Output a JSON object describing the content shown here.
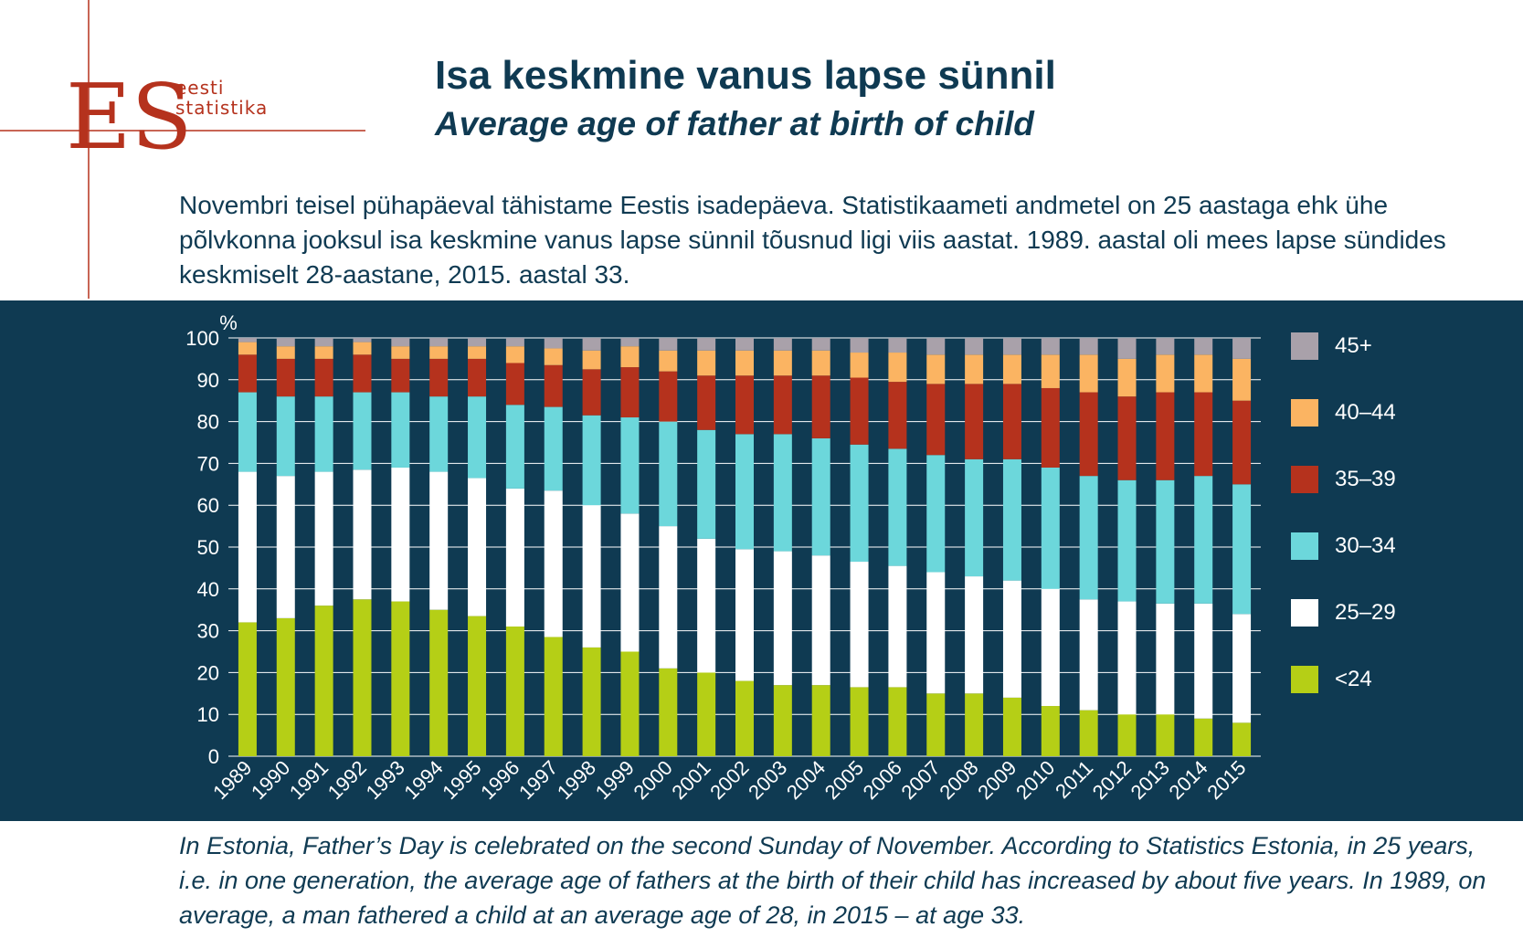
{
  "logo": {
    "mark": "ES",
    "line1": "eesti",
    "line2": "statistika",
    "color": "#b5321d"
  },
  "title": "Isa keskmine vanus lapse sünnil",
  "subtitle": "Average age of father at birth of child",
  "intro": "Novembri teisel pühapäeval tähistame Eestis isadepäeva. Statistikaameti andmetel on 25 aastaga ehk ühe põlvkonna jooksul isa keskmine vanus lapse sünnil tõusnud ligi viis aastat. 1989. aastal oli mees lapse sündides keskmiselt 28-aastane, 2015. aastal 33.",
  "outro": "In Estonia, Father’s Day is celebrated on the second Sunday of November. According to Statistics Estonia, in 25 years, i.e. in one generation, the average age of fathers at the birth of their child has increased by about five years. In 1989, on average, a man fathered a child at an average age of 28, in 2015 – at age 33.",
  "colors": {
    "panel": "#0f3a52"
  },
  "chart_data": {
    "type": "bar",
    "stacked": true,
    "ylabel": "%",
    "ylim": [
      0,
      100
    ],
    "yticks": [
      0,
      10,
      20,
      30,
      40,
      50,
      60,
      70,
      80,
      90,
      100
    ],
    "grid": true,
    "legend_position": "right",
    "categories": [
      "1989",
      "1990",
      "1991",
      "1992",
      "1993",
      "1994",
      "1995",
      "1996",
      "1997",
      "1998",
      "1999",
      "2000",
      "2001",
      "2002",
      "2003",
      "2004",
      "2005",
      "2006",
      "2007",
      "2008",
      "2009",
      "2010",
      "2011",
      "2012",
      "2013",
      "2014",
      "2015"
    ],
    "series": [
      {
        "name": "<24",
        "color": "#b5cf16",
        "values": [
          32,
          33,
          36,
          37.5,
          37,
          35,
          33.5,
          31,
          28.5,
          26,
          25,
          21,
          20,
          18,
          17,
          17,
          16.5,
          16.5,
          15,
          15,
          14,
          12,
          11,
          10,
          10,
          9,
          8
        ]
      },
      {
        "name": "25–29",
        "color": "#ffffff",
        "values": [
          36,
          34,
          32,
          31,
          32,
          33,
          33,
          33,
          35,
          34,
          33,
          34,
          32,
          31.5,
          32,
          31,
          30,
          29,
          29,
          28,
          28,
          28,
          26.5,
          27,
          26.5,
          27.5,
          26
        ]
      },
      {
        "name": "30–34",
        "color": "#6cd7db",
        "values": [
          19,
          19,
          18,
          18.5,
          18,
          18,
          19.5,
          20,
          20,
          21.5,
          23,
          25,
          26,
          27.5,
          28,
          28,
          28,
          28,
          28,
          28,
          29,
          29,
          29.5,
          29,
          29.5,
          30.5,
          31
        ]
      },
      {
        "name": "35–39",
        "color": "#b5321d",
        "values": [
          9,
          9,
          9,
          9,
          8,
          9,
          9,
          10,
          10,
          11,
          12,
          12,
          13,
          14,
          14,
          15,
          16,
          16,
          17,
          18,
          18,
          19,
          20,
          20,
          21,
          20,
          20
        ]
      },
      {
        "name": "40–44",
        "color": "#fbb462",
        "values": [
          3,
          3,
          3,
          3,
          3,
          3,
          3,
          4,
          4,
          4.5,
          5,
          5,
          6,
          6,
          6,
          6,
          6,
          7,
          7,
          7,
          7,
          8,
          9,
          9,
          9,
          9,
          10
        ]
      },
      {
        "name": "45+",
        "color": "#a9a1aa",
        "values": [
          1,
          2,
          2,
          1,
          2,
          2,
          2,
          2,
          2.5,
          3,
          2,
          3,
          3,
          3,
          3,
          3,
          3.5,
          3.5,
          4,
          4,
          4,
          4,
          4,
          5,
          4,
          4,
          5
        ]
      }
    ]
  }
}
